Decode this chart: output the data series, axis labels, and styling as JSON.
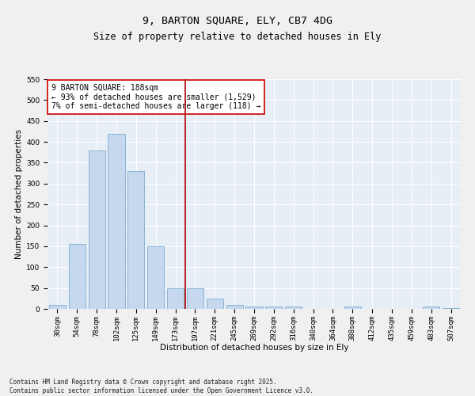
{
  "title1": "9, BARTON SQUARE, ELY, CB7 4DG",
  "title2": "Size of property relative to detached houses in Ely",
  "xlabel": "Distribution of detached houses by size in Ely",
  "ylabel": "Number of detached properties",
  "categories": [
    "30sqm",
    "54sqm",
    "78sqm",
    "102sqm",
    "125sqm",
    "149sqm",
    "173sqm",
    "197sqm",
    "221sqm",
    "245sqm",
    "269sqm",
    "292sqm",
    "316sqm",
    "340sqm",
    "364sqm",
    "388sqm",
    "412sqm",
    "435sqm",
    "459sqm",
    "483sqm",
    "507sqm"
  ],
  "values": [
    10,
    155,
    380,
    420,
    330,
    150,
    50,
    50,
    25,
    10,
    5,
    5,
    5,
    0,
    0,
    5,
    0,
    0,
    0,
    5,
    2
  ],
  "bar_color": "#c5d8ed",
  "bar_edgecolor": "#7aadd4",
  "bar_width": 0.85,
  "vline_x_idx": 7,
  "vline_color": "#aa0000",
  "ylim": [
    0,
    550
  ],
  "yticks": [
    0,
    50,
    100,
    150,
    200,
    250,
    300,
    350,
    400,
    450,
    500,
    550
  ],
  "annotation_box_text": "9 BARTON SQUARE: 188sqm\n← 93% of detached houses are smaller (1,529)\n7% of semi-detached houses are larger (118) →",
  "bg_color": "#e8eef6",
  "footer": "Contains HM Land Registry data © Crown copyright and database right 2025.\nContains public sector information licensed under the Open Government Licence v3.0.",
  "title_fontsize": 9.5,
  "subtitle_fontsize": 8.5,
  "axis_label_fontsize": 7.5,
  "tick_fontsize": 6.5,
  "annotation_fontsize": 7,
  "footer_fontsize": 5.5
}
